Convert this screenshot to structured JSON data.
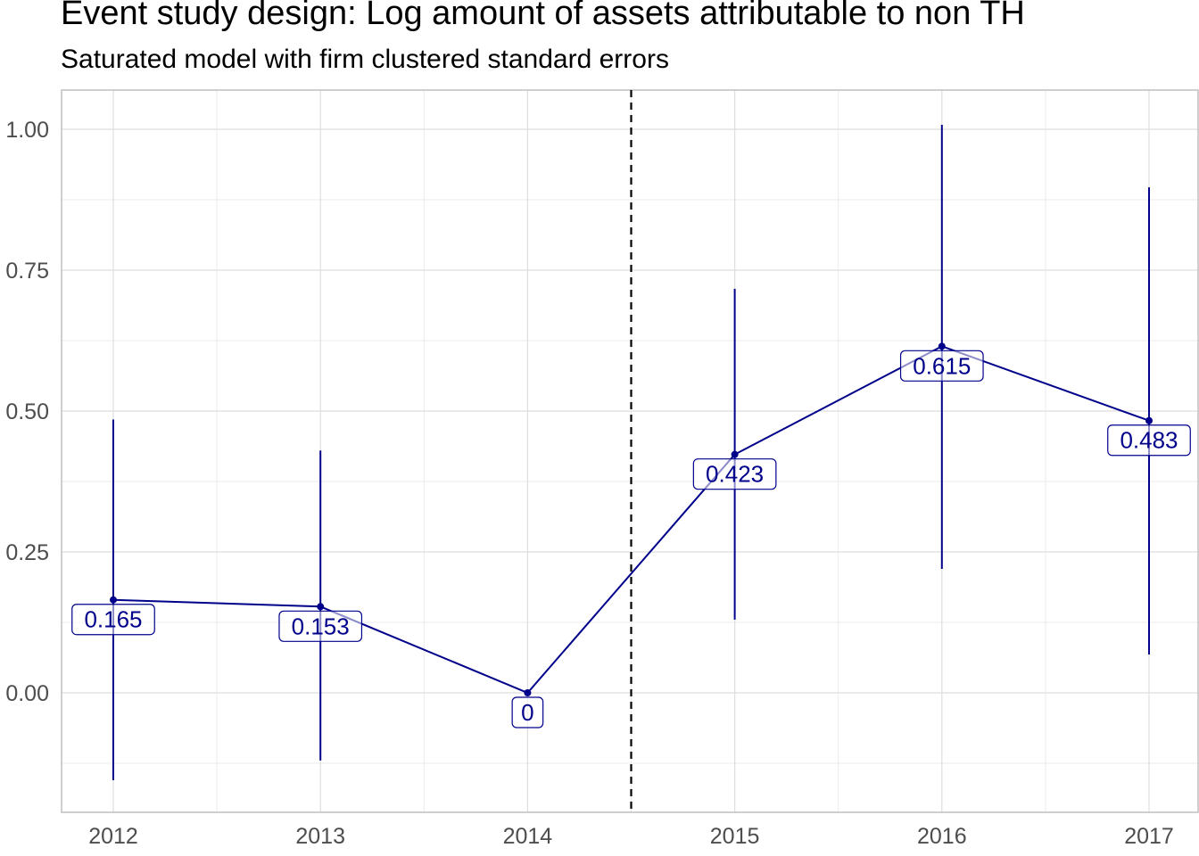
{
  "chart_data": {
    "type": "line",
    "title": "Event study design: Log amount of assets attributable to non TH",
    "subtitle": "Saturated model with firm clustered standard errors",
    "xlabel": "",
    "ylabel": "",
    "x": [
      "2012",
      "2013",
      "2014",
      "2015",
      "2016",
      "2017"
    ],
    "series": [
      {
        "values": [
          0.165,
          0.153,
          0,
          0.423,
          0.615,
          0.483
        ],
        "ci_low": [
          -0.155,
          -0.12,
          0,
          0.13,
          0.22,
          0.068
        ],
        "ci_high": [
          0.485,
          0.43,
          0,
          0.717,
          1.008,
          0.897
        ],
        "labels": [
          "0.165",
          "0.153",
          "0",
          "0.423",
          "0.615",
          "0.483"
        ],
        "color": "#00008b"
      }
    ],
    "yticks": [
      "0.00",
      "0.25",
      "0.50",
      "0.75",
      "1.00"
    ],
    "ytick_values": [
      0,
      0.25,
      0.5,
      0.75,
      1.0
    ],
    "ylim": [
      -0.21,
      1.05
    ],
    "vline_x": 2014.5,
    "vline_style": "dashed",
    "grid": true,
    "legend": "none"
  }
}
